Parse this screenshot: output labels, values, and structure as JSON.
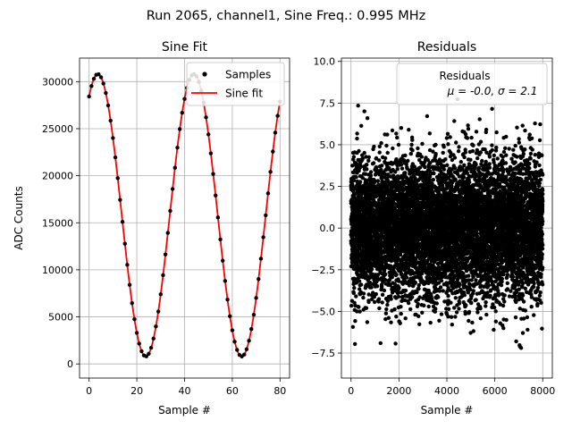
{
  "figure": {
    "suptitle": "Run 2065, channel1, Sine Freq.: 0.995 MHz"
  },
  "chart_data": [
    {
      "type": "line",
      "title": "Sine Fit",
      "xlabel": "Sample #",
      "ylabel": "ADC Counts",
      "xlim": [
        -4,
        84
      ],
      "ylim": [
        -1500,
        32500
      ],
      "xticks": [
        0,
        20,
        40,
        60,
        80
      ],
      "yticks": [
        0,
        5000,
        10000,
        15000,
        20000,
        25000,
        30000
      ],
      "grid": true,
      "legend_position": "top-right",
      "model": {
        "offset": 15800,
        "amplitude": 15000,
        "period": 40.2,
        "phase_rad": 1.0
      },
      "series": [
        {
          "name": "Samples",
          "style": "scatter",
          "color": "#000000",
          "x_start": 0,
          "x_end": 80,
          "x_step": 1
        },
        {
          "name": "Sine fit",
          "style": "line",
          "color": "#ff0000",
          "x_start": 0,
          "x_end": 80,
          "x_step": 0.2
        }
      ]
    },
    {
      "type": "scatter",
      "title": "Residuals",
      "xlabel": "Sample #",
      "ylabel": "",
      "xlim": [
        -400,
        8400
      ],
      "ylim": [
        -9,
        10.2
      ],
      "xticks": [
        0,
        2000,
        4000,
        6000,
        8000
      ],
      "yticks": [
        -7.5,
        -5.0,
        -2.5,
        0.0,
        2.5,
        5.0,
        7.5,
        10.0
      ],
      "ytick_labels": [
        "−7.5",
        "−5.0",
        "−2.5",
        "0.0",
        "2.5",
        "5.0",
        "7.5",
        "10.0"
      ],
      "grid": true,
      "legend_position": "top-right",
      "series": [
        {
          "name": "Residuals",
          "color": "#000000",
          "n_points": 8000,
          "mean": 0.0,
          "sigma": 2.1
        }
      ],
      "legend": {
        "name": "Residuals",
        "stats": "μ = -0.0, σ = 2.1"
      }
    }
  ]
}
